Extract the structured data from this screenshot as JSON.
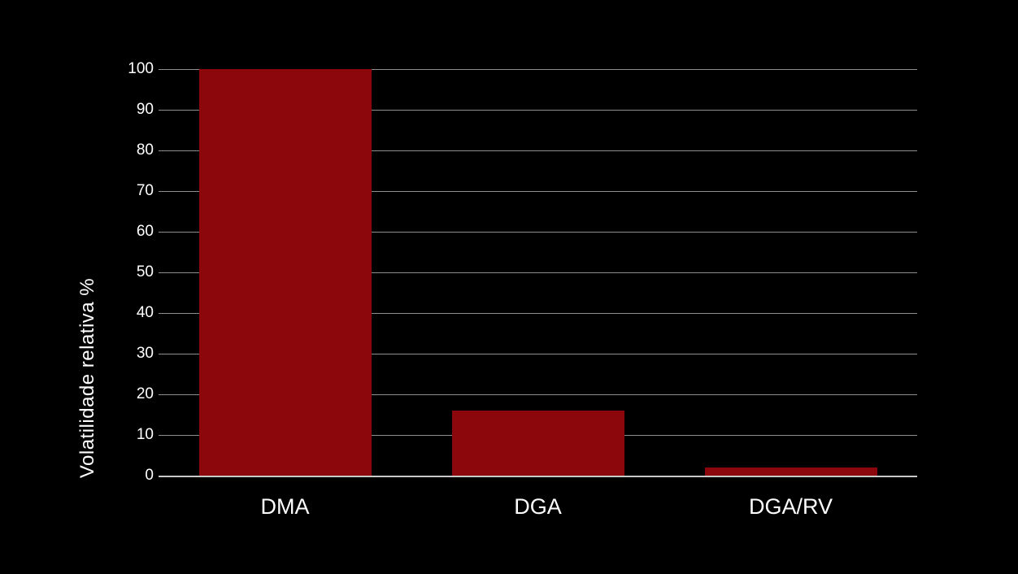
{
  "chart_data": {
    "type": "bar",
    "categories": [
      "DMA",
      "DGA",
      "DGA/RV"
    ],
    "values": [
      100,
      16,
      2
    ],
    "title": "",
    "xlabel": "",
    "ylabel": "Volatilidade relativa  %",
    "ylim": [
      0,
      100
    ],
    "yticks": [
      0,
      10,
      20,
      30,
      40,
      50,
      60,
      70,
      80,
      90,
      100
    ],
    "grid": true,
    "legend": "none",
    "bar_color": "#8b070b",
    "gridline_color": "#8f8f8f",
    "axis_line_color": "#c9c9c9",
    "text_color": "#ffffff",
    "background_color": "#000000"
  }
}
